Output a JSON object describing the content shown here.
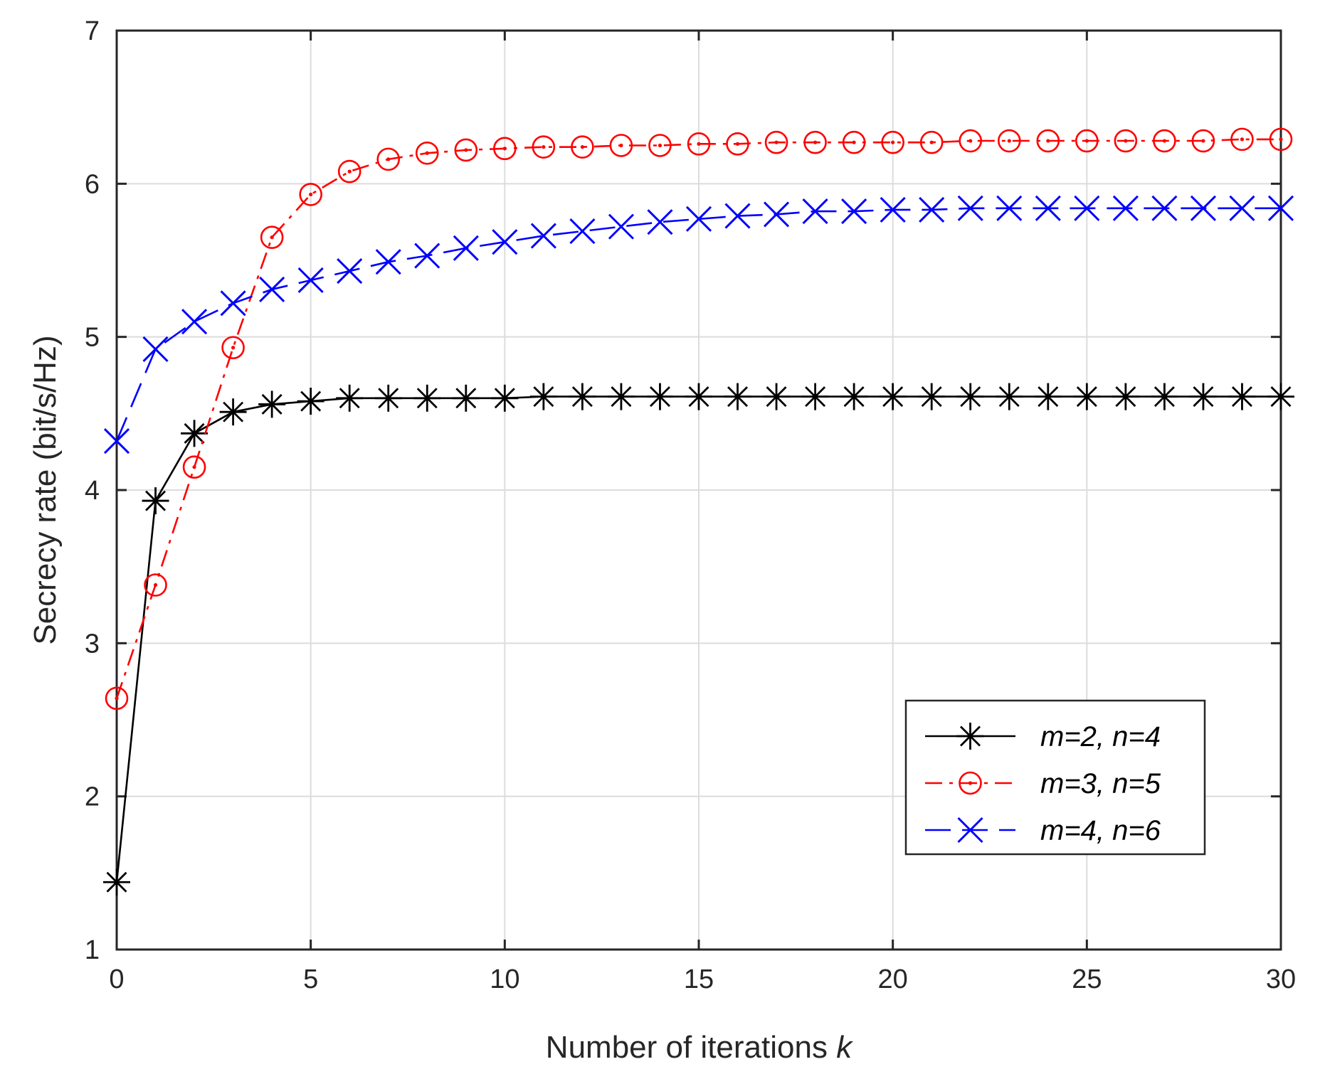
{
  "chart_data": {
    "type": "line",
    "title": "",
    "xlabel": "Number of iterations",
    "xlabel_var": "k",
    "ylabel": "Secrecy rate (bit/s/Hz)",
    "xlim": [
      0,
      30
    ],
    "ylim": [
      1,
      7
    ],
    "xticks": [
      "0",
      "5",
      "10",
      "15",
      "20",
      "25",
      "30"
    ],
    "yticks": [
      "1",
      "2",
      "3",
      "4",
      "5",
      "6",
      "7"
    ],
    "grid": true,
    "legend_position": "lower-right",
    "x": [
      0,
      1,
      2,
      3,
      4,
      5,
      6,
      7,
      8,
      9,
      10,
      11,
      12,
      13,
      14,
      15,
      16,
      17,
      18,
      19,
      20,
      21,
      22,
      23,
      24,
      25,
      26,
      27,
      28,
      29,
      30
    ],
    "series": [
      {
        "name": "m=2, n=4",
        "color": "#000000",
        "marker": "asterisk",
        "dash": "solid",
        "values": [
          1.44,
          3.93,
          4.37,
          4.51,
          4.56,
          4.58,
          4.6,
          4.6,
          4.6,
          4.6,
          4.6,
          4.61,
          4.61,
          4.61,
          4.61,
          4.61,
          4.61,
          4.61,
          4.61,
          4.61,
          4.61,
          4.61,
          4.61,
          4.61,
          4.61,
          4.61,
          4.61,
          4.61,
          4.61,
          4.61,
          4.61
        ]
      },
      {
        "name": "m=3, n=5",
        "color": "#ff0000",
        "marker": "circle",
        "dash": "dashdot",
        "values": [
          2.64,
          3.38,
          4.15,
          4.93,
          5.65,
          5.93,
          6.08,
          6.16,
          6.2,
          6.22,
          6.23,
          6.24,
          6.24,
          6.25,
          6.25,
          6.26,
          6.26,
          6.27,
          6.27,
          6.27,
          6.27,
          6.27,
          6.28,
          6.28,
          6.28,
          6.28,
          6.28,
          6.28,
          6.28,
          6.29,
          6.29
        ]
      },
      {
        "name": "m=4, n=6",
        "color": "#0000ff",
        "marker": "x",
        "dash": "dashed",
        "values": [
          4.32,
          4.92,
          5.1,
          5.22,
          5.31,
          5.37,
          5.43,
          5.49,
          5.53,
          5.58,
          5.62,
          5.66,
          5.69,
          5.72,
          5.75,
          5.77,
          5.79,
          5.8,
          5.82,
          5.82,
          5.83,
          5.83,
          5.84,
          5.84,
          5.84,
          5.84,
          5.84,
          5.84,
          5.84,
          5.84,
          5.84
        ]
      }
    ]
  }
}
